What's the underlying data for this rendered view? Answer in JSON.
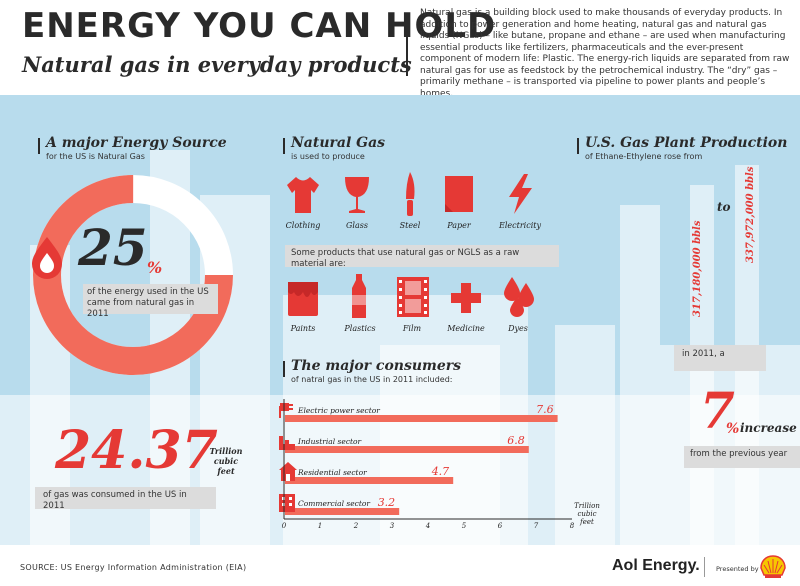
{
  "header": {
    "title": "ENERGY YOU CAN HOLD",
    "subtitle": "Natural gas in everyday products",
    "intro": "Natural gas is a building block used to make thousands of everyday products. In addition to power generation and home heating, natural gas and natural gas liquids (NGLs) – like butane, propane and ethane – are used when manufacturing essential products like fertilizers, pharmaceuticals and the ever-present component of modern life: Plastic. The energy-rich liquids are separated from raw natural gas for use as feedstock by the petrochemical industry. The “dry” gas – primarily methane – is transported via pipeline to power plants and people’s homes."
  },
  "energy_source": {
    "heading": "A major Energy Source",
    "sub": "for the US is Natural Gas",
    "percent": "25",
    "percent_sign": "%",
    "percent_value": 25,
    "desc": "of the energy used in the US came from natural gas in 2011",
    "consumed_value": "24.37",
    "consumed_unit": "Trillion cubic feet",
    "consumed_desc": "of gas was consumed in the US in 2011"
  },
  "natural_gas": {
    "heading": "Natural Gas",
    "sub": "is used to produce",
    "produces": [
      {
        "label": "Clothing",
        "icon": "shirt-icon"
      },
      {
        "label": "Glass",
        "icon": "wine-glass-icon"
      },
      {
        "label": "Steel",
        "icon": "knife-icon"
      },
      {
        "label": "Paper",
        "icon": "paper-icon"
      },
      {
        "label": "Electricity",
        "icon": "lightning-icon"
      }
    ],
    "products_intro": "Some products that use natural gas or NGLS as a raw material are:",
    "products": [
      {
        "label": "Paints",
        "icon": "paint-can-icon"
      },
      {
        "label": "Plastics",
        "icon": "plastic-bottle-icon"
      },
      {
        "label": "Film",
        "icon": "film-strip-icon"
      },
      {
        "label": "Medicine",
        "icon": "medical-cross-icon"
      },
      {
        "label": "Dyes",
        "icon": "dye-drops-icon"
      }
    ]
  },
  "plant_production": {
    "heading": "U.S. Gas Plant Production",
    "sub": "of Ethane-Ethylene rose from",
    "from_value": "317,180,000 bbls",
    "to_word": "to",
    "to_value": "337,972,000 bbls",
    "year_text": "in 2011, a",
    "increase_value": "7",
    "increase_sign": "%",
    "increase_word": "increase",
    "increase_desc": "from the previous year"
  },
  "consumers": {
    "heading": "The major consumers",
    "sub": "of natral gas in the US in 2011 included:"
  },
  "chart_data": {
    "type": "bar",
    "orientation": "horizontal",
    "categories": [
      "Electric power sector",
      "Industrial sector",
      "Residential sector",
      "Commercial sector"
    ],
    "values": [
      7.6,
      6.8,
      4.7,
      3.2
    ],
    "value_labels": [
      "7.6",
      "6.8",
      "4.7",
      "3.2"
    ],
    "icons": [
      "power-plug-icon",
      "factory-icon",
      "house-icon",
      "office-building-icon"
    ],
    "xlim": [
      0,
      8
    ],
    "xticks": [
      "0",
      "1",
      "2",
      "3",
      "4",
      "5",
      "6",
      "7",
      "8"
    ],
    "xlabel": "Trillion cubic feet",
    "bar_color": "#f26b5b",
    "accent_color": "#e53935"
  },
  "footer": {
    "source": "SOURCE: US Energy Information Administration (EIA)",
    "brand": "Aol Energy.",
    "presented_by": "Presented by",
    "sponsor_logo": "shell-logo"
  }
}
